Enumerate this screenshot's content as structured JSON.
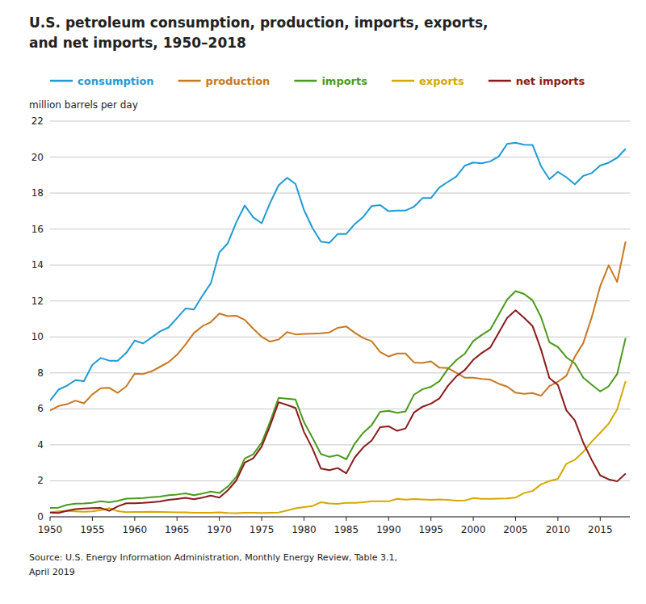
{
  "chart_data": {
    "type": "line",
    "title": "U.S. petroleum consumption, production, imports, exports,\nand net imports,  1950–2018",
    "y_label": "million barrels per day",
    "annotations": [
      "Source: U.S. Energy Information Administration, Monthly Energy Review, Table 3.1,",
      "April 2019"
    ],
    "x": [
      1950,
      1951,
      1952,
      1953,
      1954,
      1955,
      1956,
      1957,
      1958,
      1959,
      1960,
      1961,
      1962,
      1963,
      1964,
      1965,
      1966,
      1967,
      1968,
      1969,
      1970,
      1971,
      1972,
      1973,
      1974,
      1975,
      1976,
      1977,
      1978,
      1979,
      1980,
      1981,
      1982,
      1983,
      1984,
      1985,
      1986,
      1987,
      1988,
      1989,
      1990,
      1991,
      1992,
      1993,
      1994,
      1995,
      1996,
      1997,
      1998,
      1999,
      2000,
      2001,
      2002,
      2003,
      2004,
      2005,
      2006,
      2007,
      2008,
      2009,
      2010,
      2011,
      2012,
      2013,
      2014,
      2015,
      2016,
      2017,
      2018
    ],
    "series": [
      {
        "name": "consumption",
        "color": "#1f9ad6",
        "values": [
          6.46,
          7.07,
          7.29,
          7.6,
          7.54,
          8.45,
          8.83,
          8.68,
          8.68,
          9.11,
          9.8,
          9.64,
          9.97,
          10.31,
          10.53,
          11.05,
          11.58,
          11.53,
          12.29,
          12.99,
          14.7,
          15.21,
          16.37,
          17.31,
          16.65,
          16.32,
          17.46,
          18.43,
          18.85,
          18.51,
          17.06,
          16.06,
          15.3,
          15.23,
          15.73,
          15.73,
          16.28,
          16.67,
          17.28,
          17.33,
          16.99,
          17.03,
          17.03,
          17.24,
          17.72,
          17.72,
          18.31,
          18.62,
          18.92,
          19.52,
          19.7,
          19.65,
          19.76,
          20.03,
          20.73,
          20.8,
          20.69,
          20.68,
          19.5,
          18.77,
          19.18,
          18.88,
          18.49,
          18.96,
          19.11,
          19.53,
          19.69,
          19.96,
          20.46
        ]
      },
      {
        "name": "production",
        "color": "#c87820",
        "values": [
          5.91,
          6.16,
          6.26,
          6.46,
          6.31,
          6.81,
          7.15,
          7.17,
          6.89,
          7.25,
          7.96,
          7.94,
          8.09,
          8.34,
          8.6,
          9.01,
          9.58,
          10.22,
          10.6,
          10.83,
          11.3,
          11.16,
          11.18,
          10.95,
          10.46,
          10.01,
          9.74,
          9.86,
          10.27,
          10.14,
          10.17,
          10.18,
          10.2,
          10.25,
          10.51,
          10.58,
          10.23,
          9.94,
          9.76,
          9.16,
          8.91,
          9.08,
          9.08,
          8.58,
          8.55,
          8.64,
          8.29,
          8.27,
          8.01,
          7.73,
          7.73,
          7.67,
          7.63,
          7.4,
          7.24,
          6.9,
          6.84,
          6.88,
          6.73,
          7.27,
          7.51,
          7.84,
          8.9,
          9.66,
          11.1,
          12.82,
          13.98,
          13.06,
          15.31
        ]
      },
      {
        "name": "imports",
        "color": "#4a9a1c",
        "values": [
          0.49,
          0.51,
          0.66,
          0.73,
          0.74,
          0.78,
          0.86,
          0.81,
          0.89,
          1.01,
          1.02,
          1.04,
          1.09,
          1.12,
          1.2,
          1.24,
          1.3,
          1.2,
          1.29,
          1.4,
          1.32,
          1.68,
          2.22,
          3.24,
          3.47,
          4.11,
          5.29,
          6.61,
          6.57,
          6.52,
          5.26,
          4.4,
          3.49,
          3.33,
          3.43,
          3.2,
          4.07,
          4.67,
          5.1,
          5.84,
          5.89,
          5.78,
          5.86,
          6.79,
          7.09,
          7.23,
          7.54,
          8.22,
          8.71,
          9.07,
          9.77,
          10.11,
          10.41,
          11.24,
          12.08,
          12.55,
          12.39,
          12.04,
          11.11,
          9.7,
          9.44,
          8.87,
          8.53,
          7.73,
          7.34,
          6.97,
          7.26,
          7.94,
          9.94
        ]
      },
      {
        "name": "exports",
        "color": "#d4a800",
        "values": [
          0.25,
          0.3,
          0.32,
          0.3,
          0.28,
          0.3,
          0.37,
          0.48,
          0.31,
          0.26,
          0.27,
          0.27,
          0.28,
          0.27,
          0.26,
          0.25,
          0.25,
          0.22,
          0.22,
          0.22,
          0.25,
          0.21,
          0.2,
          0.23,
          0.22,
          0.21,
          0.22,
          0.24,
          0.35,
          0.47,
          0.54,
          0.6,
          0.81,
          0.74,
          0.72,
          0.78,
          0.77,
          0.81,
          0.86,
          0.86,
          0.86,
          1.0,
          0.95,
          0.99,
          0.97,
          0.94,
          0.96,
          0.94,
          0.9,
          0.91,
          1.04,
          1.0,
          1.0,
          1.01,
          1.02,
          1.07,
          1.32,
          1.43,
          1.8,
          1.99,
          2.11,
          2.95,
          3.17,
          3.61,
          4.18,
          4.67,
          5.18,
          5.97,
          7.54
        ]
      },
      {
        "name": "net imports",
        "color": "#8b1a1a",
        "values": [
          0.24,
          0.21,
          0.34,
          0.43,
          0.46,
          0.48,
          0.49,
          0.33,
          0.58,
          0.75,
          0.75,
          0.77,
          0.81,
          0.85,
          0.94,
          0.99,
          1.05,
          0.98,
          1.07,
          1.18,
          1.07,
          1.47,
          2.02,
          3.01,
          3.25,
          3.9,
          5.07,
          6.37,
          6.22,
          6.05,
          4.72,
          3.8,
          2.68,
          2.59,
          2.71,
          2.42,
          3.3,
          3.86,
          4.24,
          4.98,
          5.03,
          4.78,
          4.91,
          5.8,
          6.12,
          6.29,
          6.58,
          7.28,
          7.81,
          8.16,
          8.73,
          9.11,
          9.41,
          10.23,
          11.06,
          11.48,
          11.07,
          10.61,
          9.31,
          7.71,
          7.33,
          5.92,
          5.36,
          4.12,
          3.16,
          2.3,
          2.08,
          1.97,
          2.4
        ]
      }
    ],
    "xlim": [
      1950,
      2018.5
    ],
    "xticks": [
      1950,
      1955,
      1960,
      1965,
      1970,
      1975,
      1980,
      1985,
      1990,
      1995,
      2000,
      2005,
      2010,
      2015
    ],
    "ylim": [
      0,
      22
    ],
    "yticks": [
      0,
      2,
      4,
      6,
      8,
      10,
      12,
      14,
      16,
      18,
      20,
      22
    ],
    "grid": true,
    "legend": "top"
  }
}
